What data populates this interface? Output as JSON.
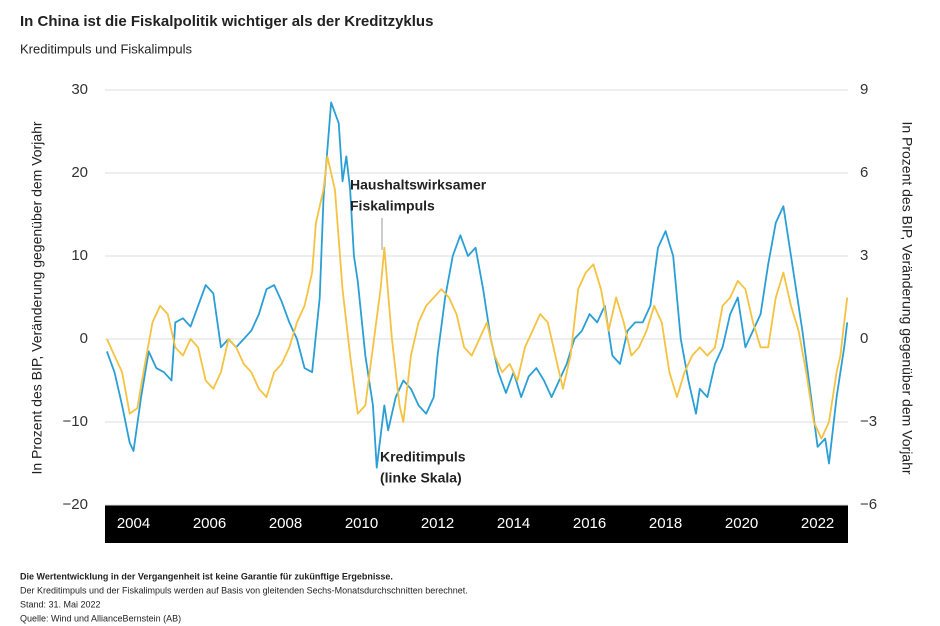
{
  "chart_data": {
    "type": "line",
    "title": "In China ist die Fiskalpolitik wichtiger als der Kreditzyklus",
    "subtitle": "Kreditimpuls und Fiskalimpuls",
    "ylabel": "In Prozent des BIP, Veränderung gegenüber dem Vorjahr",
    "y2label": "In Prozent des BIP, Veränderung gegenüber dem Vorjahr",
    "xlim": [
      2003.25,
      2022.8
    ],
    "xticks": [
      2004,
      2006,
      2008,
      2010,
      2012,
      2014,
      2016,
      2018,
      2020,
      2022
    ],
    "ylim": [
      -20,
      30
    ],
    "yticks": [
      {
        "value": -20,
        "label": "−20"
      },
      {
        "value": -10,
        "label": "−10"
      },
      0,
      10,
      20,
      30
    ],
    "y2lim": [
      -6,
      9
    ],
    "y2ticks": [
      {
        "value": -6,
        "label": "−6"
      },
      {
        "value": -3,
        "label": "−3"
      },
      0,
      3,
      6,
      9
    ],
    "grid": true,
    "series": [
      {
        "color": "#2a9fd6",
        "x": [
          2003.3,
          2003.5,
          2003.7,
          2003.9,
          2004.0,
          2004.2,
          2004.4,
          2004.6,
          2004.8,
          2005.0,
          2005.1,
          2005.3,
          2005.5,
          2005.7,
          2005.9,
          2006.1,
          2006.3,
          2006.5,
          2006.7,
          2006.9,
          2007.1,
          2007.3,
          2007.5,
          2007.7,
          2007.9,
          2008.1,
          2008.3,
          2008.5,
          2008.7,
          2008.9,
          2009.0,
          2009.2,
          2009.4,
          2009.5,
          2009.6,
          2009.7,
          2009.8,
          2009.9,
          2010.1,
          2010.3,
          2010.4,
          2010.6,
          2010.7,
          2010.9,
          2011.1,
          2011.3,
          2011.5,
          2011.7,
          2011.9,
          2012.0,
          2012.2,
          2012.4,
          2012.6,
          2012.8,
          2013.0,
          2013.2,
          2013.4,
          2013.6,
          2013.8,
          2014.0,
          2014.2,
          2014.4,
          2014.6,
          2014.8,
          2015.0,
          2015.2,
          2015.4,
          2015.6,
          2015.8,
          2016.0,
          2016.2,
          2016.4,
          2016.6,
          2016.8,
          2017.0,
          2017.2,
          2017.4,
          2017.6,
          2017.8,
          2018.0,
          2018.2,
          2018.4,
          2018.6,
          2018.8,
          2018.9,
          2019.1,
          2019.3,
          2019.5,
          2019.7,
          2019.9,
          2020.1,
          2020.3,
          2020.5,
          2020.7,
          2020.9,
          2021.1,
          2021.2,
          2021.4,
          2021.6,
          2021.8,
          2022.0,
          2022.2,
          2022.3,
          2022.5,
          2022.7,
          2022.78
        ],
        "values": [
          -1.5,
          -4,
          -8,
          -12.5,
          -13.5,
          -7,
          -1.5,
          -3.5,
          -4,
          -5,
          2,
          2.5,
          1.5,
          4,
          6.5,
          5.5,
          -1,
          0,
          -1,
          0,
          1,
          3,
          6,
          6.5,
          4.5,
          2,
          0,
          -3.5,
          -4,
          5,
          17,
          28.5,
          26,
          19,
          22,
          18,
          10,
          7,
          -2,
          -8,
          -15.5,
          -8,
          -11,
          -7,
          -5,
          -6,
          -8,
          -9,
          -7,
          -2,
          5,
          10,
          12.5,
          10,
          11,
          6,
          0,
          -4,
          -6.5,
          -4,
          -7,
          -4.5,
          -3.5,
          -5,
          -7,
          -5,
          -3,
          0,
          1,
          3,
          2,
          4,
          -2,
          -3,
          1,
          2,
          2,
          4,
          11,
          13,
          10,
          0,
          -5,
          -9,
          -6,
          -7,
          -3,
          -1,
          3,
          5,
          -1,
          1,
          3,
          9,
          14,
          16,
          13,
          7,
          1,
          -6,
          -13,
          -12,
          -15,
          -7,
          -1,
          2
        ]
      },
      {
        "color": "#f5c242",
        "axis": "y2",
        "x": [
          2003.3,
          2003.5,
          2003.7,
          2003.9,
          2004.1,
          2004.3,
          2004.5,
          2004.7,
          2004.9,
          2005.1,
          2005.3,
          2005.5,
          2005.7,
          2005.9,
          2006.1,
          2006.3,
          2006.5,
          2006.7,
          2006.9,
          2007.1,
          2007.3,
          2007.5,
          2007.7,
          2007.9,
          2008.1,
          2008.3,
          2008.5,
          2008.7,
          2008.8,
          2009.0,
          2009.1,
          2009.3,
          2009.5,
          2009.7,
          2009.9,
          2010.1,
          2010.3,
          2010.5,
          2010.6,
          2010.8,
          2011.0,
          2011.1,
          2011.3,
          2011.5,
          2011.7,
          2011.9,
          2012.1,
          2012.3,
          2012.5,
          2012.7,
          2012.9,
          2013.1,
          2013.3,
          2013.5,
          2013.7,
          2013.9,
          2014.1,
          2014.3,
          2014.5,
          2014.7,
          2014.9,
          2015.1,
          2015.3,
          2015.5,
          2015.7,
          2015.9,
          2016.1,
          2016.3,
          2016.5,
          2016.7,
          2016.9,
          2017.1,
          2017.3,
          2017.5,
          2017.7,
          2017.9,
          2018.1,
          2018.3,
          2018.5,
          2018.7,
          2018.9,
          2019.1,
          2019.3,
          2019.5,
          2019.7,
          2019.9,
          2020.1,
          2020.3,
          2020.5,
          2020.7,
          2020.9,
          2021.1,
          2021.3,
          2021.5,
          2021.7,
          2021.9,
          2022.1,
          2022.3,
          2022.5,
          2022.6,
          2022.7,
          2022.78
        ],
        "values": [
          0,
          -0.6,
          -1.2,
          -2.7,
          -2.5,
          -0.9,
          0.6,
          1.2,
          0.9,
          -0.3,
          -0.6,
          0,
          -0.3,
          -1.5,
          -1.8,
          -1.2,
          0,
          -0.3,
          -0.9,
          -1.2,
          -1.8,
          -2.1,
          -1.2,
          -0.9,
          -0.3,
          0.6,
          1.2,
          2.4,
          4.2,
          5.4,
          6.6,
          5.4,
          1.8,
          -0.6,
          -2.7,
          -2.4,
          -0.3,
          1.8,
          3.3,
          0,
          -2.4,
          -3.0,
          -0.6,
          0.6,
          1.2,
          1.5,
          1.8,
          1.5,
          0.9,
          -0.3,
          -0.6,
          0,
          0.6,
          -0.6,
          -1.2,
          -0.9,
          -1.5,
          -0.3,
          0.3,
          0.9,
          0.6,
          -0.6,
          -1.8,
          -0.6,
          1.8,
          2.4,
          2.7,
          1.8,
          0.3,
          1.5,
          0.6,
          -0.6,
          -0.3,
          0.3,
          1.2,
          0.6,
          -1.2,
          -2.1,
          -1.2,
          -0.6,
          -0.3,
          -0.6,
          -0.3,
          1.2,
          1.5,
          2.1,
          1.8,
          0.6,
          -0.3,
          -0.3,
          1.5,
          2.4,
          1.2,
          0.3,
          -1.2,
          -3.0,
          -3.6,
          -3.0,
          -1.2,
          -0.6,
          0.6,
          1.5
        ]
      }
    ],
    "annotations": [
      {
        "lines": [
          "Haushaltswirksamer",
          "Fiskalimpuls"
        ]
      },
      {
        "lines": [
          "Kreditimpuls",
          "(linke Skala)"
        ]
      }
    ],
    "notes": {
      "disclaimer": "Die Wertentwicklung in der Vergangenheit ist keine Garantie für zukünftige Ergebnisse.",
      "lines": [
        "Der Kreditimpuls und der Fiskalimpuls werden auf Basis von gleitenden Sechs-Monatsdurchschnitten berechnet.",
        "Stand: 31. Mai 2022",
        "Quelle: Wind und AllianceBernstein (AB)"
      ]
    }
  }
}
